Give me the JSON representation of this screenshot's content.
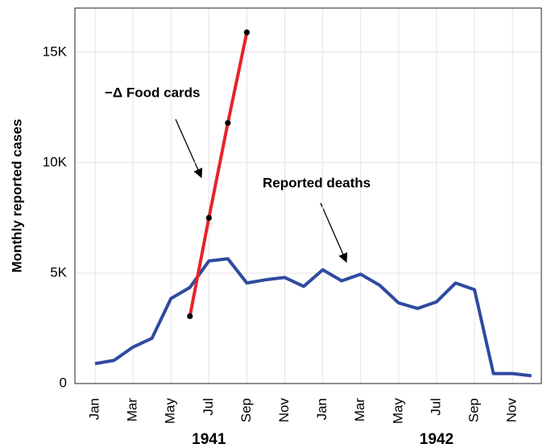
{
  "chart_data": {
    "type": "line",
    "y_label": "Monthly reported cases",
    "categories": [
      "Jan",
      null,
      "Mar",
      null,
      "May",
      null,
      "Jul",
      null,
      "Sep",
      null,
      "Nov",
      null,
      "Jan",
      null,
      "Mar",
      null,
      "May",
      null,
      "Jul",
      null,
      "Sep",
      null,
      "Nov",
      null
    ],
    "year_labels": [
      "1941",
      "1942"
    ],
    "series": [
      {
        "name": "Reported deaths",
        "color": "#2f4aa0",
        "values": [
          900,
          1050,
          1650,
          2050,
          3850,
          4350,
          5550,
          5650,
          4550,
          4700,
          4800,
          4400,
          5150,
          4650,
          4950,
          4450,
          3650,
          3400,
          3700,
          4550,
          4250,
          450,
          450,
          350
        ]
      },
      {
        "name": "−Δ Food cards",
        "color": "#e8232a",
        "marker_color": "#000000",
        "values": [
          null,
          null,
          null,
          null,
          null,
          3050,
          7500,
          11800,
          15900,
          null,
          null,
          null,
          null,
          null,
          null,
          null,
          null,
          null,
          null,
          null,
          null,
          null,
          null,
          null
        ]
      }
    ],
    "ylim": [
      0,
      17000
    ],
    "yticks": [
      0,
      {
        "value": 5000,
        "label": "5K"
      },
      {
        "value": 10000,
        "label": "10K"
      },
      {
        "value": 15000,
        "label": "15K"
      }
    ],
    "grid": true
  }
}
